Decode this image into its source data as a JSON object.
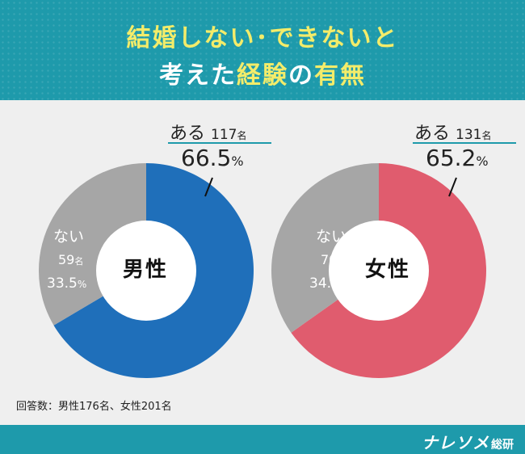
{
  "title": {
    "line1": "結婚しない･できないと",
    "line2_pre": "考えた",
    "line2_accent1": "経験",
    "line2_mid": "の",
    "line2_accent2": "有無"
  },
  "colors": {
    "header": "#1e9aab",
    "title_accent": "#f3ec6a",
    "male": "#1f6fba",
    "female": "#e05c6e",
    "no": "#a6a6a6"
  },
  "footnote": "回答数：男性176名、女性201名",
  "brand": {
    "main": "ナレソメ",
    "sub": "総研"
  },
  "chart_data": [
    {
      "type": "pie",
      "center_label": "男性",
      "slices": [
        {
          "name": "ある",
          "count": 117,
          "percent": 66.5,
          "color": "#1f6fba"
        },
        {
          "name": "ない",
          "count": 59,
          "percent": 33.5,
          "color": "#a6a6a6"
        }
      ],
      "labels": {
        "yes_name": "ある",
        "yes_count": "117",
        "yes_pct": "66.5",
        "no_name": "ない",
        "no_count": "59",
        "no_pct": "33.5",
        "unit": "名",
        "pct_sign": "%"
      }
    },
    {
      "type": "pie",
      "center_label": "女性",
      "slices": [
        {
          "name": "ある",
          "count": 131,
          "percent": 65.2,
          "color": "#e05c6e"
        },
        {
          "name": "ない",
          "count": 70,
          "percent": 34.8,
          "color": "#a6a6a6"
        }
      ],
      "labels": {
        "yes_name": "ある",
        "yes_count": "131",
        "yes_pct": "65.2",
        "no_name": "ない",
        "no_count": "70",
        "no_pct": "34.8",
        "unit": "名",
        "pct_sign": "%"
      }
    }
  ]
}
